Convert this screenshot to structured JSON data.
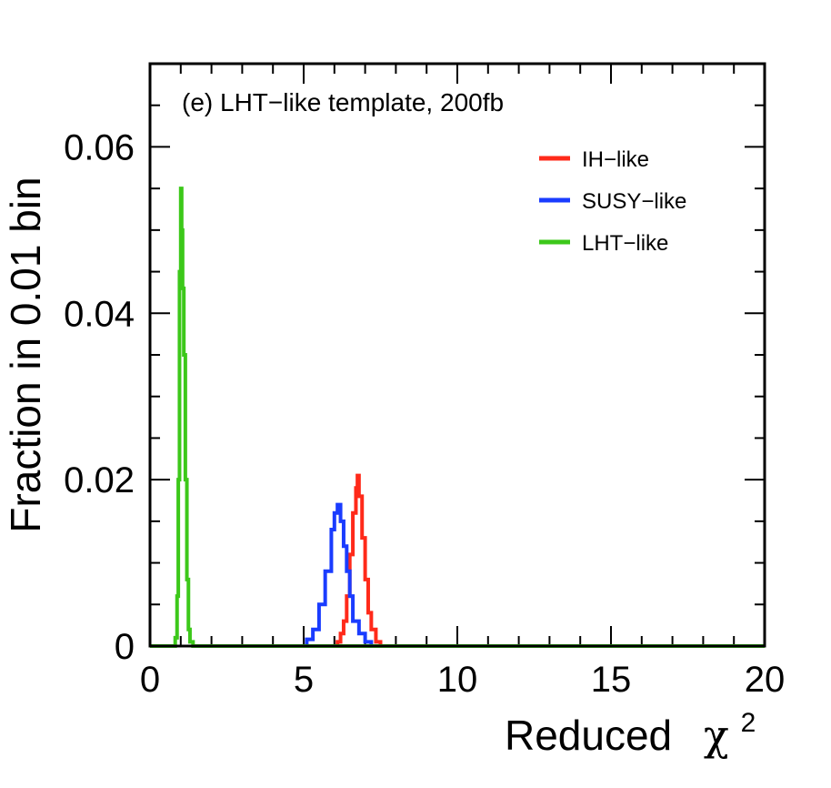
{
  "chart_data": {
    "type": "line",
    "title": "(e) LHT−like template, 200fb",
    "xlabel": "Reduced",
    "xlabel_symbol": "χ",
    "xlabel_superscript": "2",
    "ylabel": "Fraction in 0.01 bin",
    "xlim": [
      0,
      20
    ],
    "ylim": [
      0,
      0.07
    ],
    "x_ticks": [
      0,
      5,
      10,
      15,
      20
    ],
    "x_tick_labels": [
      "0",
      "5",
      "10",
      "15",
      "20"
    ],
    "y_ticks": [
      0,
      0.02,
      0.04,
      0.06
    ],
    "y_tick_labels": [
      "0",
      "0.02",
      "0.04",
      "0.06"
    ],
    "legend_position": "top-right",
    "series": [
      {
        "name": "IH−like",
        "color": "#ff2a1a",
        "x": [
          6.0,
          6.1,
          6.2,
          6.3,
          6.4,
          6.5,
          6.6,
          6.7,
          6.75,
          6.8,
          6.9,
          7.0,
          7.1,
          7.2,
          7.35,
          7.5
        ],
        "y": [
          0,
          0.0005,
          0.0015,
          0.003,
          0.006,
          0.011,
          0.016,
          0.019,
          0.0205,
          0.018,
          0.013,
          0.008,
          0.004,
          0.002,
          0.0005,
          0
        ]
      },
      {
        "name": "SUSY−like",
        "color": "#1a3cff",
        "x": [
          4.9,
          5.1,
          5.3,
          5.5,
          5.7,
          5.9,
          6.0,
          6.1,
          6.2,
          6.3,
          6.4,
          6.5,
          6.6,
          6.8,
          7.0,
          7.2
        ],
        "y": [
          0,
          0.0008,
          0.002,
          0.005,
          0.009,
          0.014,
          0.016,
          0.017,
          0.015,
          0.012,
          0.009,
          0.006,
          0.003,
          0.0015,
          0.0005,
          0
        ]
      },
      {
        "name": "LHT−like",
        "color": "#3cc81a",
        "x": [
          0,
          0.75,
          0.82,
          0.88,
          0.92,
          0.96,
          1.0,
          1.03,
          1.06,
          1.1,
          1.15,
          1.2,
          1.25,
          1.3,
          1.4,
          20
        ],
        "y": [
          0,
          0,
          0.001,
          0.006,
          0.02,
          0.045,
          0.055,
          0.05,
          0.043,
          0.035,
          0.02,
          0.008,
          0.002,
          0.0005,
          0,
          0
        ]
      }
    ]
  }
}
